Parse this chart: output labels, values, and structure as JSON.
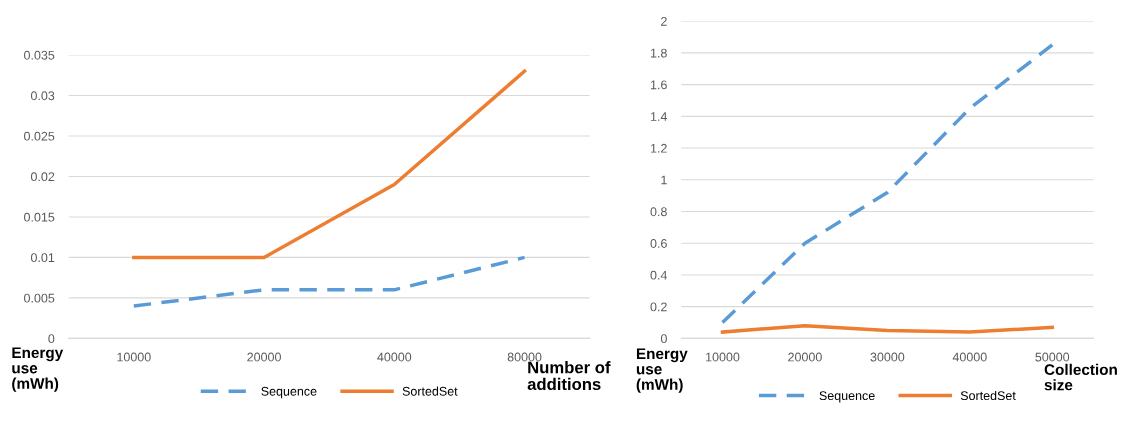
{
  "chart_data": [
    {
      "type": "line",
      "xlabel": "Number of additions",
      "ylabel": "Energy use (mWh)",
      "categories": [
        "10000",
        "20000",
        "40000",
        "80000"
      ],
      "series": [
        {
          "name": "Sequence",
          "color": "#5b9bd5",
          "line_style": "dashed",
          "values": [
            0.004,
            0.006,
            0.006,
            0.01
          ]
        },
        {
          "name": "SortedSet",
          "color": "#ed7d31",
          "line_style": "solid",
          "values": [
            0.01,
            0.01,
            0.019,
            0.033
          ]
        }
      ],
      "ylim": [
        0,
        0.035
      ],
      "yticks": [
        0,
        0.005,
        0.01,
        0.015,
        0.02,
        0.025,
        0.03,
        0.035
      ],
      "grid": "y",
      "legend": "bottom",
      "marker": "none"
    },
    {
      "type": "line",
      "xlabel": "Collection size",
      "ylabel": "Energy use (mWh)",
      "categories": [
        "10000",
        "20000",
        "30000",
        "40000",
        "50000"
      ],
      "series": [
        {
          "name": "Sequence",
          "color": "#5b9bd5",
          "line_style": "dashed",
          "values": [
            0.1,
            0.6,
            0.92,
            1.45,
            1.85
          ]
        },
        {
          "name": "SortedSet",
          "color": "#ed7d31",
          "line_style": "solid",
          "values": [
            0.04,
            0.08,
            0.05,
            0.04,
            0.07
          ]
        }
      ],
      "ylim": [
        0,
        2
      ],
      "yticks": [
        0,
        0.2,
        0.4,
        0.6,
        0.8,
        1,
        1.2,
        1.4,
        1.6,
        1.8,
        2
      ],
      "grid": "y",
      "legend": "bottom",
      "marker": "none"
    }
  ]
}
